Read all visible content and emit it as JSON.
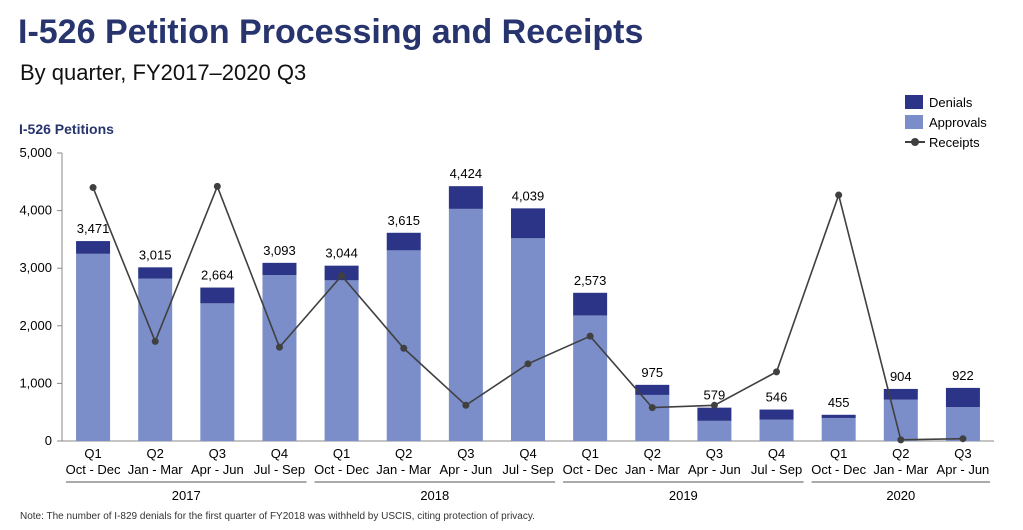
{
  "header": {
    "title": "I-526 Petition Processing and Receipts",
    "subtitle": "By quarter, FY2017–2020 Q3",
    "y_axis_title": "I-526 Petitions"
  },
  "note": "Note: The number of I-829 denials for the first quarter of FY2018 was withheld by USCIS, citing protection of privacy.",
  "colors": {
    "denials": "#2b3486",
    "approvals": "#7b8ec9",
    "receipts": "#404040",
    "title": "#27346e"
  },
  "legend": {
    "denials": "Denials",
    "approvals": "Approvals",
    "receipts": "Receipts"
  },
  "chart_data": {
    "type": "bar",
    "stacked": true,
    "title": "I-526 Petition Processing and Receipts",
    "subtitle": "By quarter, FY2017–2020 Q3",
    "ylabel": "I-526 Petitions",
    "ylim": [
      0,
      5000
    ],
    "yticks": [
      0,
      1000,
      2000,
      3000,
      4000,
      5000
    ],
    "ytick_labels": [
      "0",
      "1,000",
      "2,000",
      "3,000",
      "4,000",
      "5,000"
    ],
    "categories": [
      {
        "quarter": "Q1",
        "months": "Oct - Dec"
      },
      {
        "quarter": "Q2",
        "months": "Jan - Mar"
      },
      {
        "quarter": "Q3",
        "months": "Apr - Jun"
      },
      {
        "quarter": "Q4",
        "months": "Jul - Sep"
      },
      {
        "quarter": "Q1",
        "months": "Oct - Dec"
      },
      {
        "quarter": "Q2",
        "months": "Jan - Mar"
      },
      {
        "quarter": "Q3",
        "months": "Apr - Jun"
      },
      {
        "quarter": "Q4",
        "months": "Jul - Sep"
      },
      {
        "quarter": "Q1",
        "months": "Oct - Dec"
      },
      {
        "quarter": "Q2",
        "months": "Jan - Mar"
      },
      {
        "quarter": "Q3",
        "months": "Apr - Jun"
      },
      {
        "quarter": "Q4",
        "months": "Jul - Sep"
      },
      {
        "quarter": "Q1",
        "months": "Oct - Dec"
      },
      {
        "quarter": "Q2",
        "months": "Jan - Mar"
      },
      {
        "quarter": "Q3",
        "months": "Apr - Jun"
      }
    ],
    "years": [
      {
        "label": "2017",
        "start": 0,
        "end": 3
      },
      {
        "label": "2018",
        "start": 4,
        "end": 7
      },
      {
        "label": "2019",
        "start": 8,
        "end": 11
      },
      {
        "label": "2020",
        "start": 12,
        "end": 14
      }
    ],
    "series": [
      {
        "name": "Approvals",
        "kind": "bar",
        "values": [
          3250,
          2820,
          2390,
          2880,
          2790,
          3310,
          4030,
          3520,
          2180,
          800,
          350,
          370,
          400,
          720,
          590
        ]
      },
      {
        "name": "Denials",
        "kind": "bar",
        "values": [
          221,
          195,
          274,
          213,
          254,
          305,
          394,
          519,
          393,
          175,
          229,
          176,
          55,
          184,
          332
        ]
      },
      {
        "name": "Receipts",
        "kind": "line",
        "values": [
          4400,
          1730,
          4420,
          1630,
          2870,
          1610,
          620,
          1340,
          1820,
          580,
          620,
          1200,
          4270,
          20,
          40
        ]
      }
    ],
    "totals": [
      3471,
      3015,
      2664,
      3093,
      3044,
      3615,
      4424,
      4039,
      2573,
      975,
      579,
      546,
      455,
      904,
      922
    ],
    "total_labels": [
      "3,471",
      "3,015",
      "2,664",
      "3,093",
      "3,044",
      "3,615",
      "4,424",
      "4,039",
      "2,573",
      "975",
      "579",
      "546",
      "455",
      "904",
      "922"
    ],
    "legend_position": "top-right"
  }
}
